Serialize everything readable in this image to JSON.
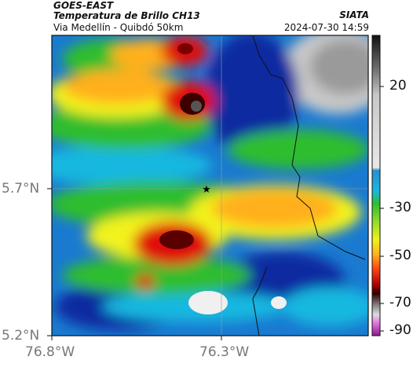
{
  "header": {
    "satellite": "GOES-EAST",
    "product": "Temperatura de Brillo CH13",
    "route": "Via Medellín - Quibdó 50km",
    "source": "SIATA",
    "datetime": "2024-07-30 14:59"
  },
  "axes": {
    "lat_labels": [
      "5.7°N",
      "5.2°N"
    ],
    "lon_labels": [
      "76.8°W",
      "76.3°W"
    ]
  },
  "colorbar": {
    "ticks": [
      "20",
      "-30",
      "-50",
      "-70",
      "-90"
    ],
    "colors": [
      "#111111",
      "#555555",
      "#9a9a9a",
      "#d0d0d0",
      "#eaeaea",
      "#2a8fd0",
      "#19b8e0",
      "#20c0a0",
      "#2ebd2e",
      "#8fdc2a",
      "#f2f21e",
      "#ffb01e",
      "#ff6a10",
      "#e01010",
      "#7a0000",
      "#3a0000",
      "#777777",
      "#cccccc",
      "#e070e0",
      "#a020a0"
    ]
  },
  "marker": {
    "symbol": "★",
    "name": "station-star"
  }
}
